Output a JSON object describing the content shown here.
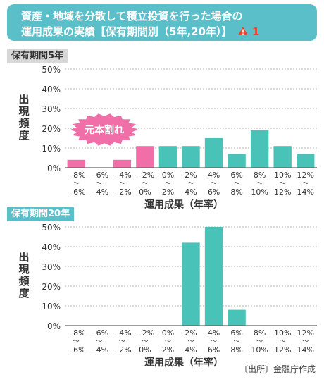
{
  "header": {
    "line1": "資産・地域を分散して積立投資を行った場合の",
    "line2": "運用成果の実績【保有期間別（5年,20年）】",
    "note_number": "1",
    "note_icon": "warning-triangle-icon"
  },
  "source": "〔出所〕金融庁作成",
  "colors": {
    "teal": "#49c2b8",
    "pink": "#f06fa8",
    "header": "#5bbfca"
  },
  "chart_data": [
    {
      "type": "bar",
      "title": "保有期間5年",
      "xlabel": "運用成果（年率）",
      "ylabel": "出現頻度",
      "ylim": [
        0,
        50
      ],
      "yticks": [
        "0%",
        "10%",
        "20%",
        "30%",
        "40%",
        "50%"
      ],
      "categories": [
        [
          "−8%",
          "〜",
          "−6%"
        ],
        [
          "−6%",
          "〜",
          "−4%"
        ],
        [
          "−4%",
          "〜",
          "−2%"
        ],
        [
          "−2%",
          "〜",
          "0%"
        ],
        [
          "0%",
          "〜",
          "2%"
        ],
        [
          "2%",
          "〜",
          "4%"
        ],
        [
          "4%",
          "〜",
          "6%"
        ],
        [
          "6%",
          "〜",
          "8%"
        ],
        [
          "8%",
          "〜",
          "10%"
        ],
        [
          "10%",
          "〜",
          "12%"
        ],
        [
          "12%",
          "〜",
          "14%"
        ]
      ],
      "values": [
        4,
        0,
        4,
        11,
        11,
        11,
        15,
        7,
        19,
        11,
        7
      ],
      "loss_bins": 4,
      "annotation": "元本割れ"
    },
    {
      "type": "bar",
      "title": "保有期間20年",
      "xlabel": "運用成果（年率）",
      "ylabel": "出現頻度",
      "ylim": [
        0,
        50
      ],
      "yticks": [
        "0%",
        "10%",
        "20%",
        "30%",
        "40%",
        "50%"
      ],
      "categories": [
        [
          "−8%",
          "〜",
          "−6%"
        ],
        [
          "−6%",
          "〜",
          "−4%"
        ],
        [
          "−4%",
          "〜",
          "−2%"
        ],
        [
          "−2%",
          "〜",
          "0%"
        ],
        [
          "0%",
          "〜",
          "2%"
        ],
        [
          "2%",
          "〜",
          "4%"
        ],
        [
          "4%",
          "〜",
          "6%"
        ],
        [
          "6%",
          "〜",
          "8%"
        ],
        [
          "8%",
          "〜",
          "10%"
        ],
        [
          "10%",
          "〜",
          "12%"
        ],
        [
          "12%",
          "〜",
          "14%"
        ]
      ],
      "values": [
        0,
        0,
        0,
        0,
        0,
        42,
        50,
        8,
        0,
        0,
        0
      ],
      "loss_bins": 4
    }
  ]
}
